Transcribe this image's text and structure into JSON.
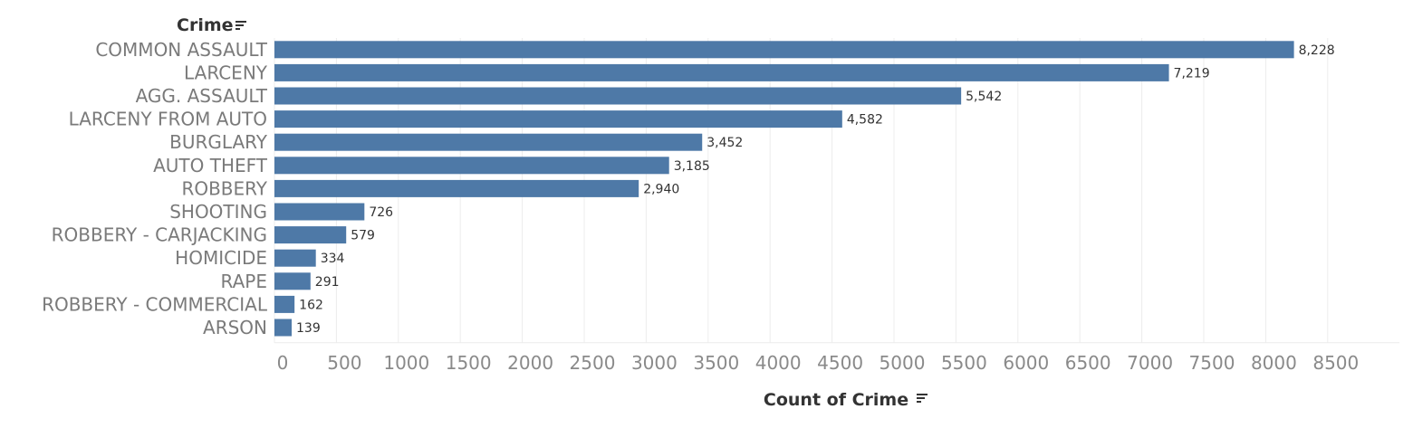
{
  "chart_data": {
    "type": "bar",
    "orientation": "horizontal",
    "ylabel": "Crime",
    "xlabel": "Count of Crime",
    "categories": [
      "COMMON ASSAULT",
      "LARCENY",
      "AGG. ASSAULT",
      "LARCENY FROM AUTO",
      "BURGLARY",
      "AUTO THEFT",
      "ROBBERY",
      "SHOOTING",
      "ROBBERY - CARJACKING",
      "HOMICIDE",
      "RAPE",
      "ROBBERY - COMMERCIAL",
      "ARSON"
    ],
    "values": [
      8228,
      7219,
      5542,
      4582,
      3452,
      3185,
      2940,
      726,
      579,
      334,
      291,
      162,
      139
    ],
    "value_labels": [
      "8,228",
      "7,219",
      "5,542",
      "4,582",
      "3,452",
      "3,185",
      "2,940",
      "726",
      "579",
      "334",
      "291",
      "162",
      "139"
    ],
    "xticks": [
      0,
      500,
      1000,
      1500,
      2000,
      2500,
      3000,
      3500,
      4000,
      4500,
      5000,
      5500,
      6000,
      6500,
      7000,
      7500,
      8000,
      8500
    ],
    "xlim": [
      0,
      8900
    ],
    "grid": true,
    "bar_color": "#4e79a7",
    "sort_icon": "sort-descending-icon"
  }
}
